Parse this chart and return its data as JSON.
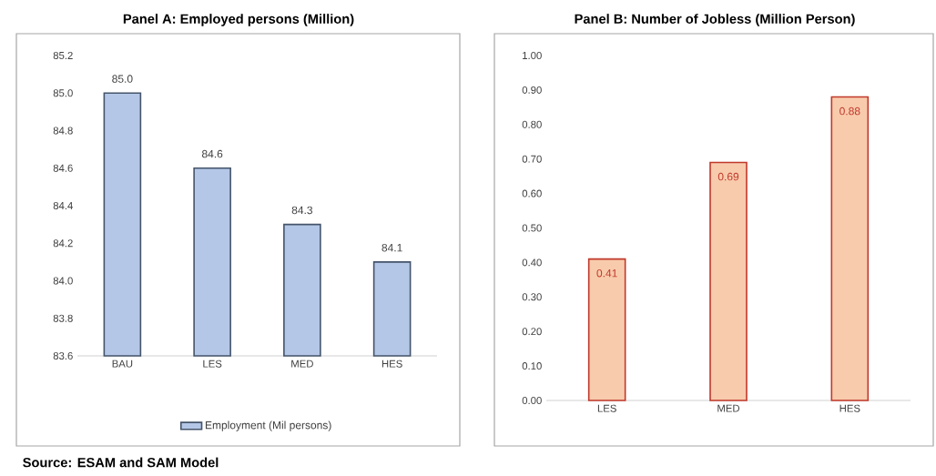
{
  "chart_data": [
    {
      "type": "bar",
      "title": "Panel A: Employed persons (Million)",
      "categories": [
        "BAU",
        "LES",
        "MED",
        "HES"
      ],
      "series": [
        {
          "name": "Employment (Mil persons)",
          "color": "#b4c7e7",
          "values": [
            85.0,
            84.6,
            84.3,
            84.1
          ],
          "value_labels": [
            "85.0",
            "84.6",
            "84.3",
            "84.1"
          ]
        }
      ],
      "ylim": [
        83.6,
        85.2
      ],
      "yticks": [
        {
          "value": 83.6,
          "label": "83.6"
        },
        {
          "value": 83.8,
          "label": "83.8"
        },
        {
          "value": 84.0,
          "label": "84.0"
        },
        {
          "value": 84.2,
          "label": "84.2"
        },
        {
          "value": 84.4,
          "label": "84.4"
        },
        {
          "value": 84.6,
          "label": "84.6"
        },
        {
          "value": 84.8,
          "label": "84.8"
        },
        {
          "value": 85.0,
          "label": "85.0"
        },
        {
          "value": 85.2,
          "label": "85.2"
        }
      ],
      "legend": "bottom",
      "annotations": [
        "Source: ESAM and SAM Model"
      ]
    },
    {
      "type": "bar",
      "title": "Panel B: Number of Jobless (Million Person)",
      "categories": [
        "LES",
        "MED",
        "HES"
      ],
      "series": [
        {
          "color": "#f8cbad",
          "values": [
            0.41,
            0.69,
            0.88
          ],
          "value_labels": [
            "0.41",
            "0.69",
            "0.88"
          ]
        }
      ],
      "ylim": [
        0,
        1
      ],
      "yticks": [
        {
          "value": 0,
          "label": "0.00"
        },
        {
          "value": 0.1,
          "label": "0.10"
        },
        {
          "value": 0.2,
          "label": "0.20"
        },
        {
          "value": 0.3,
          "label": "0.30"
        },
        {
          "value": 0.4,
          "label": "0.40"
        },
        {
          "value": 0.5,
          "label": "0.50"
        },
        {
          "value": 0.6,
          "label": "0.60"
        },
        {
          "value": 0.7,
          "label": "0.70"
        },
        {
          "value": 0.8,
          "label": "0.80"
        },
        {
          "value": 0.9,
          "label": "0.90"
        },
        {
          "value": 1,
          "label": "1.00"
        }
      ]
    }
  ]
}
